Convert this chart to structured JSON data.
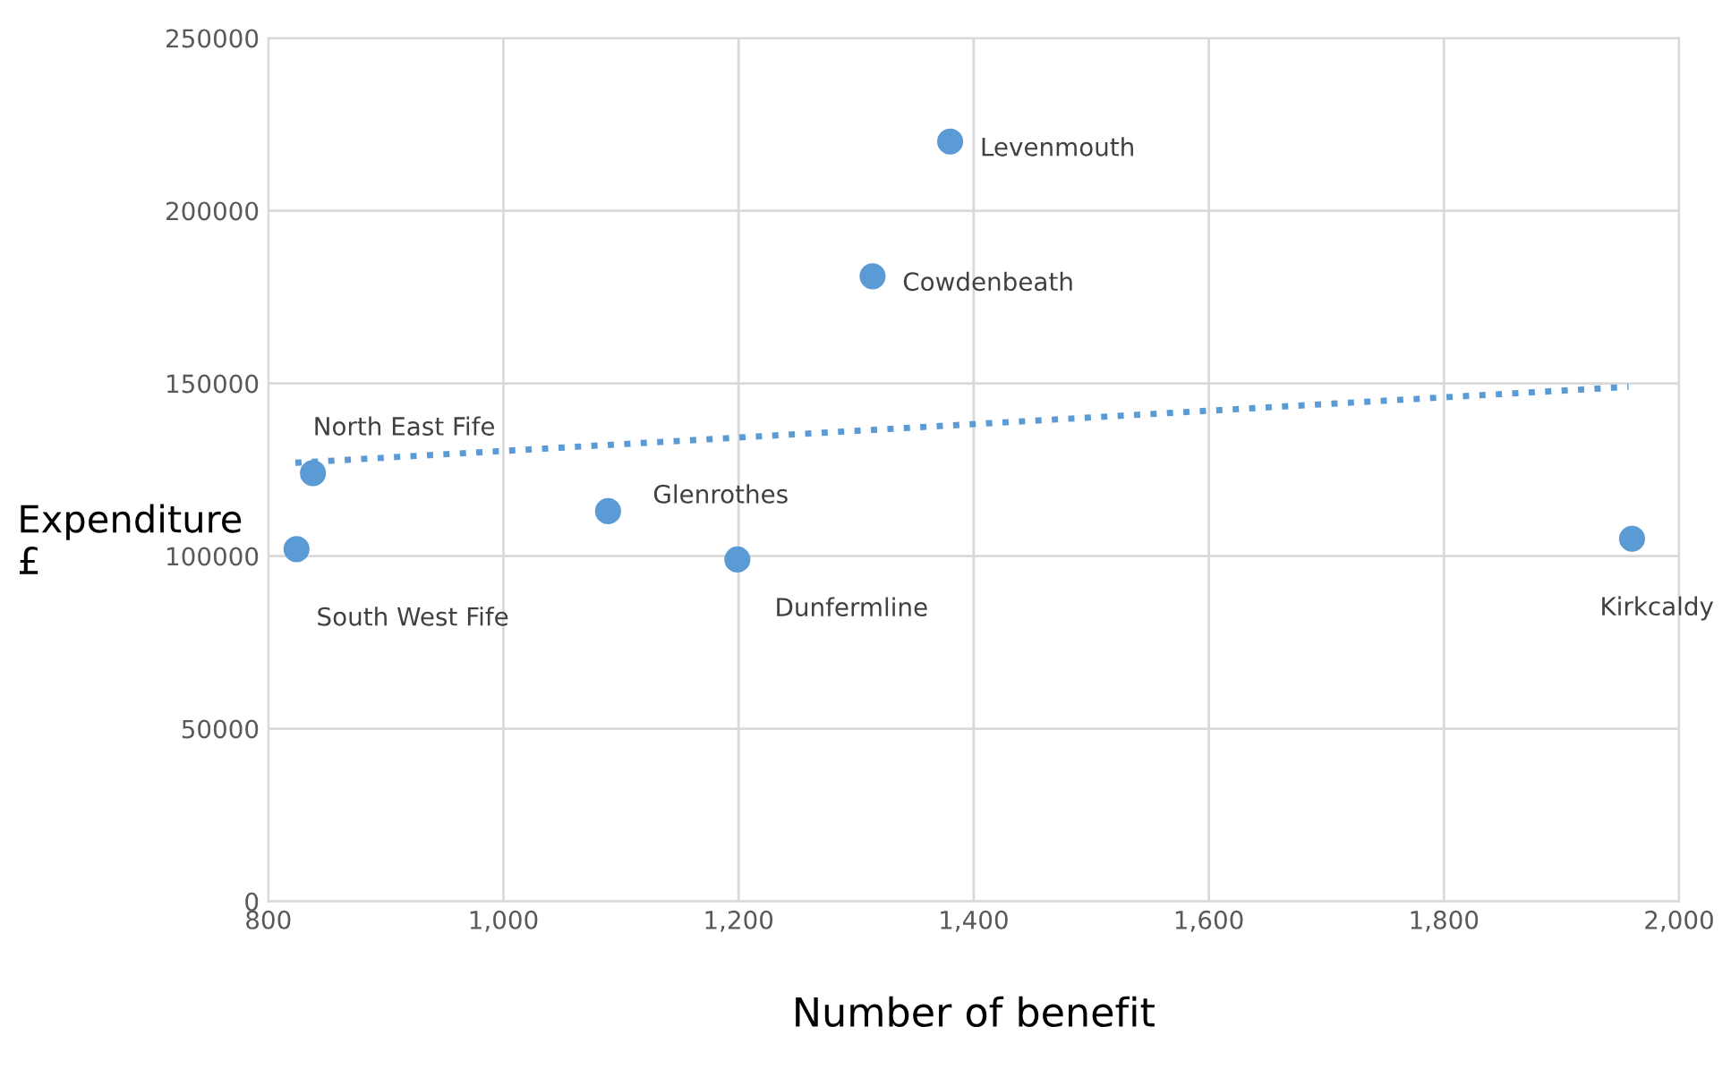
{
  "chart_data": {
    "type": "scatter",
    "xlabel": "Number of benefit",
    "ylabel": "Expenditure £",
    "xlim": [
      800,
      2000
    ],
    "ylim": [
      0,
      250000
    ],
    "xticks": [
      {
        "value": 800,
        "label": "800"
      },
      {
        "value": 1000,
        "label": "1,000"
      },
      {
        "value": 1200,
        "label": "1,200"
      },
      {
        "value": 1400,
        "label": "1,400"
      },
      {
        "value": 1600,
        "label": "1,600"
      },
      {
        "value": 1800,
        "label": "1,800"
      },
      {
        "value": 2000,
        "label": "2,000"
      }
    ],
    "yticks": [
      0,
      50000,
      100000,
      150000,
      200000,
      250000
    ],
    "grid": true,
    "series": [
      {
        "marker": "circle",
        "color": "#5b9bd5",
        "x": [
          1380,
          1314,
          838,
          1089,
          1199,
          824,
          1960
        ],
        "values": [
          220000,
          181000,
          124000,
          113000,
          99000,
          102000,
          105000
        ]
      },
      {
        "type": "line",
        "color": "#5b9bd5",
        "line_style": "dotted",
        "x": [
          823,
          1957
        ],
        "values": [
          127000,
          149000
        ]
      }
    ],
    "annotations": [
      {
        "text": "Levenmouth",
        "x": 1380,
        "y": 220000
      },
      {
        "text": "Cowdenbeath",
        "x": 1314,
        "y": 181000
      },
      {
        "text": "North East Fife",
        "x": 838,
        "y": 124000
      },
      {
        "text": "Glenrothes",
        "x": 1089,
        "y": 113000
      },
      {
        "text": "Dunfermline",
        "x": 1199,
        "y": 99000
      },
      {
        "text": "South West Fife",
        "x": 824,
        "y": 102000
      },
      {
        "text": "Kirkcaldy",
        "x": 1960,
        "y": 105000
      }
    ]
  }
}
